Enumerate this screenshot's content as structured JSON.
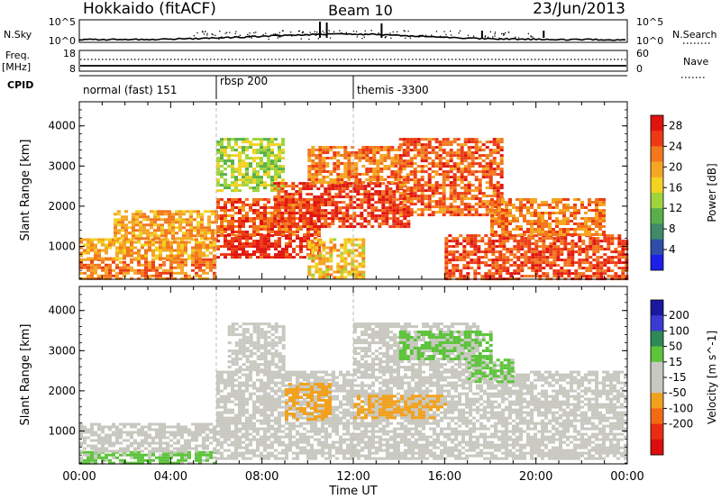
{
  "header": {
    "station": "Hokkaido (fitACF)",
    "beam": "Beam 10",
    "date": "23/Jun/2013"
  },
  "strip_panels": {
    "nsky": {
      "label": "N.Sky",
      "tick_top": "10^5",
      "tick_bottom": "10^0",
      "right_label": "N.Search",
      "right_tick_top": "10^5",
      "right_tick_bottom": "10^0"
    },
    "freq": {
      "label_line1": "Freq.",
      "label_line2": "[MHz]",
      "tick_top": "18",
      "tick_bottom": "8",
      "right_label": "Nave",
      "right_tick_top": "60",
      "right_tick_bottom": "0"
    },
    "cpid": {
      "label": "CPID",
      "modes": [
        {
          "name": "normal (fast) 151",
          "start_hour": 0
        },
        {
          "name": "rbsp 200",
          "start_hour": 6
        },
        {
          "name": "themis -3300",
          "start_hour": 12
        }
      ]
    }
  },
  "colors": {
    "power_scale": [
      "#1e1eeb",
      "#2e4ea8",
      "#3f8a6a",
      "#58b04a",
      "#9ed43c",
      "#f2d223",
      "#f5a623",
      "#f2771d",
      "#ec3b14",
      "#e0140e"
    ],
    "velocity_scale": [
      "#1a1a9e",
      "#3b3bd4",
      "#2e8a55",
      "#5cc33a",
      "#c8c8c0",
      "#c8c8c0",
      "#f2a11e",
      "#f26a14",
      "#ec2c10",
      "#dd0d0d"
    ],
    "ground_scatter": "#c0c0b8"
  },
  "chart_data": [
    {
      "type": "heatmap",
      "title": "Power",
      "xlabel": "",
      "ylabel": "Slant Range [km]",
      "x_ticks": [
        "00:00",
        "04:00",
        "08:00",
        "12:00",
        "16:00",
        "20:00",
        "00:00"
      ],
      "xlim_hours": [
        0,
        24
      ],
      "y_ticks": [
        1000,
        2000,
        3000,
        4000
      ],
      "ylim_km": [
        180,
        4600
      ],
      "colorbar_label": "Power [dB]",
      "colorbar_ticks": [
        4,
        8,
        12,
        16,
        20,
        24,
        28
      ],
      "colorbar_range": [
        0,
        30
      ],
      "echo_regions": [
        {
          "t": [
            0.0,
            6.0
          ],
          "r": [
            200,
            700
          ],
          "value": 22
        },
        {
          "t": [
            0.0,
            6.0
          ],
          "r": [
            700,
            1200
          ],
          "value": 20
        },
        {
          "t": [
            1.5,
            6.0
          ],
          "r": [
            1200,
            1900
          ],
          "value": 20
        },
        {
          "t": [
            6.0,
            10.5
          ],
          "r": [
            700,
            1300
          ],
          "value": 27
        },
        {
          "t": [
            6.0,
            10.5
          ],
          "r": [
            1300,
            2200
          ],
          "value": 24
        },
        {
          "t": [
            6.0,
            9.0
          ],
          "r": [
            2400,
            3700
          ],
          "value": 14
        },
        {
          "t": [
            8.5,
            14.5
          ],
          "r": [
            1500,
            2600
          ],
          "value": 26
        },
        {
          "t": [
            10.0,
            14.0
          ],
          "r": [
            2600,
            3500
          ],
          "value": 22
        },
        {
          "t": [
            14.0,
            18.5
          ],
          "r": [
            1800,
            3700
          ],
          "value": 24
        },
        {
          "t": [
            16.0,
            24.0
          ],
          "r": [
            200,
            1300
          ],
          "value": 25
        },
        {
          "t": [
            18.0,
            23.0
          ],
          "r": [
            1300,
            2200
          ],
          "value": 22
        },
        {
          "t": [
            10.0,
            12.5
          ],
          "r": [
            200,
            1200
          ],
          "value": 18
        }
      ]
    },
    {
      "type": "heatmap",
      "title": "Velocity",
      "xlabel": "Time UT",
      "ylabel": "Slant Range [km]",
      "x_ticks": [
        "00:00",
        "04:00",
        "08:00",
        "12:00",
        "16:00",
        "20:00",
        "00:00"
      ],
      "xlim_hours": [
        0,
        24
      ],
      "y_ticks": [
        1000,
        2000,
        3000,
        4000
      ],
      "ylim_km": [
        180,
        4600
      ],
      "colorbar_label": "Velocity [m s^-1]",
      "colorbar_ticks": [
        200,
        100,
        50,
        15,
        -15,
        -50,
        -100,
        -200
      ],
      "colorbar_range": [
        -250,
        250
      ],
      "echo_regions": [
        {
          "t": [
            0.0,
            6.0
          ],
          "r": [
            200,
            500
          ],
          "value": 60
        },
        {
          "t": [
            0.0,
            6.0
          ],
          "r": [
            500,
            1200
          ],
          "value": 0
        },
        {
          "t": [
            6.0,
            24.0
          ],
          "r": [
            300,
            2500
          ],
          "value": 0
        },
        {
          "t": [
            6.5,
            9.0
          ],
          "r": [
            2500,
            3700
          ],
          "value": 0
        },
        {
          "t": [
            9.0,
            11.0
          ],
          "r": [
            1300,
            2200
          ],
          "value": -60
        },
        {
          "t": [
            12.0,
            17.5
          ],
          "r": [
            2500,
            3700
          ],
          "value": 0
        },
        {
          "t": [
            14.0,
            18.0
          ],
          "r": [
            2800,
            3500
          ],
          "value": 60
        },
        {
          "t": [
            12.0,
            16.0
          ],
          "r": [
            1300,
            1900
          ],
          "value": -60
        },
        {
          "t": [
            17.0,
            19.0
          ],
          "r": [
            2200,
            2800
          ],
          "value": 60
        }
      ]
    }
  ]
}
